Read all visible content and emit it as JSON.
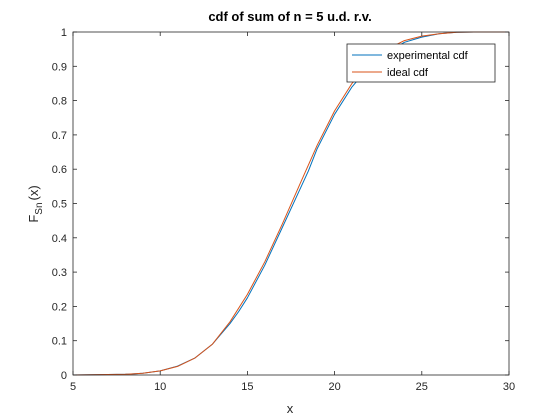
{
  "chart_data": {
    "type": "line",
    "title": "cdf of sum of n = 5 u.d. r.v.",
    "xlabel": "x",
    "ylabel_main": "F",
    "ylabel_sub": "Sn",
    "ylabel_tail": "(x)",
    "xlim": [
      5,
      30
    ],
    "ylim": [
      0,
      1
    ],
    "xticks": [
      5,
      10,
      15,
      20,
      25,
      30
    ],
    "yticks": [
      0,
      0.1,
      0.2,
      0.3,
      0.4,
      0.5,
      0.6,
      0.7,
      0.8,
      0.9,
      1
    ],
    "ytick_labels": [
      "0",
      "0.1",
      "0.2",
      "0.3",
      "0.4",
      "0.5",
      "0.6",
      "0.7",
      "0.8",
      "0.9",
      "1"
    ],
    "grid": false,
    "legend_position": "top-right",
    "series": [
      {
        "name": "experimental cdf",
        "color": "#0072BD",
        "x": [
          5,
          8,
          9,
          10,
          11,
          12,
          13,
          14,
          14.5,
          15,
          16,
          17,
          18,
          18.5,
          19,
          20,
          21,
          22,
          23,
          24,
          25,
          26,
          27,
          28,
          30
        ],
        "y": [
          0,
          0.002,
          0.005,
          0.012,
          0.026,
          0.05,
          0.09,
          0.15,
          0.185,
          0.225,
          0.32,
          0.43,
          0.54,
          0.595,
          0.66,
          0.76,
          0.84,
          0.9,
          0.94,
          0.97,
          0.985,
          0.995,
          0.999,
          1,
          1
        ]
      },
      {
        "name": "ideal cdf",
        "color": "#D95319",
        "x": [
          5,
          8,
          9,
          10,
          11,
          12,
          13,
          14,
          15,
          16,
          17,
          18,
          19,
          20,
          21,
          22,
          23,
          24,
          25,
          26,
          27,
          28,
          30
        ],
        "y": [
          0,
          0.002,
          0.005,
          0.012,
          0.025,
          0.05,
          0.09,
          0.155,
          0.235,
          0.33,
          0.44,
          0.555,
          0.67,
          0.77,
          0.85,
          0.91,
          0.95,
          0.975,
          0.988,
          0.995,
          0.999,
          1,
          1
        ]
      }
    ]
  }
}
